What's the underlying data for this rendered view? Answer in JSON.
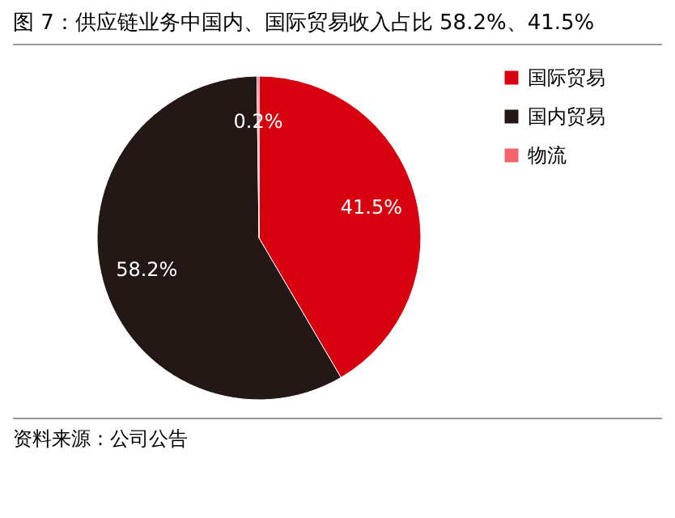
{
  "chart_data": {
    "type": "pie",
    "title": "图 7：供应链业务中国内、国际贸易收入占比 58.2%、41.5%",
    "categories": [
      "国际贸易",
      "国内贸易",
      "物流"
    ],
    "values": [
      41.5,
      58.2,
      0.2
    ],
    "colors": [
      "#d7000f",
      "#231815",
      "#f2636f"
    ],
    "value_labels": [
      "41.5%",
      "58.2%",
      "0.2%"
    ],
    "legend": "right",
    "annotations": [
      "资料来源：公司公告"
    ]
  }
}
